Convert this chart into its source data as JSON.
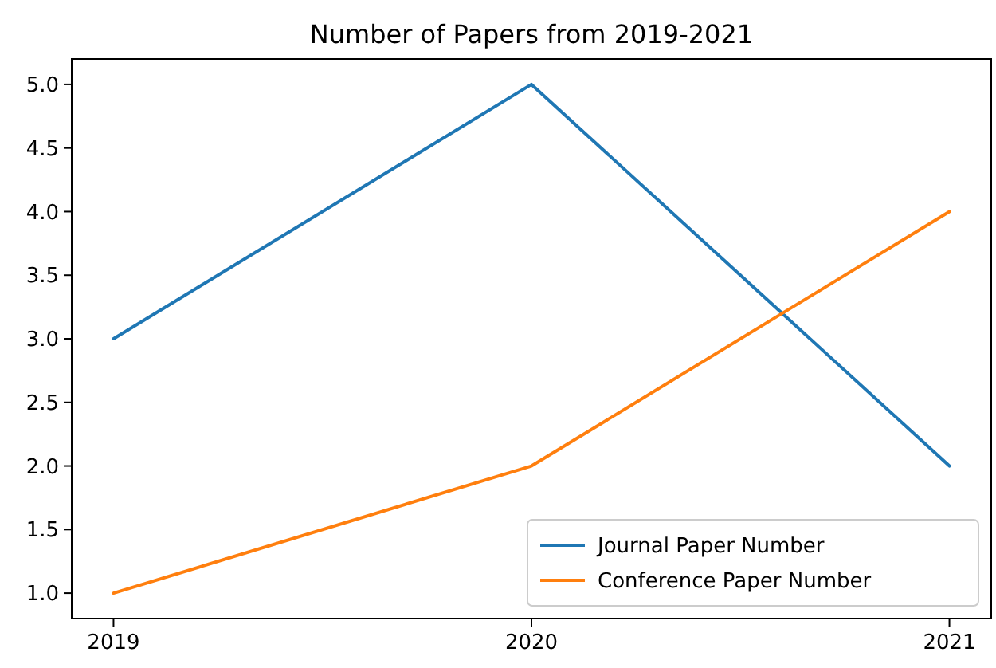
{
  "chart_data": {
    "type": "line",
    "title": "Number of Papers from 2019-2021",
    "x": [
      2019,
      2020,
      2021
    ],
    "xlim": [
      2018.9,
      2021.1
    ],
    "xticks": [
      2019,
      2020,
      2021
    ],
    "ylim": [
      0.8,
      5.2
    ],
    "yticks": [
      {
        "value": 1,
        "label": "1.0"
      },
      {
        "value": 1.5,
        "label": "1.5"
      },
      {
        "value": 2,
        "label": "2.0"
      },
      {
        "value": 2.5,
        "label": "2.5"
      },
      {
        "value": 3,
        "label": "3.0"
      },
      {
        "value": 3.5,
        "label": "3.5"
      },
      {
        "value": 4,
        "label": "4.0"
      },
      {
        "value": 4.5,
        "label": "4.5"
      },
      {
        "value": 5,
        "label": "5.0"
      }
    ],
    "grid": false,
    "legend": "bottom right",
    "series": [
      {
        "name": "Journal Paper Number",
        "color": "#1f77b4",
        "values": [
          3,
          5,
          2
        ]
      },
      {
        "name": "Conference Paper Number",
        "color": "#ff7f0e",
        "values": [
          1,
          2,
          4
        ]
      }
    ]
  }
}
